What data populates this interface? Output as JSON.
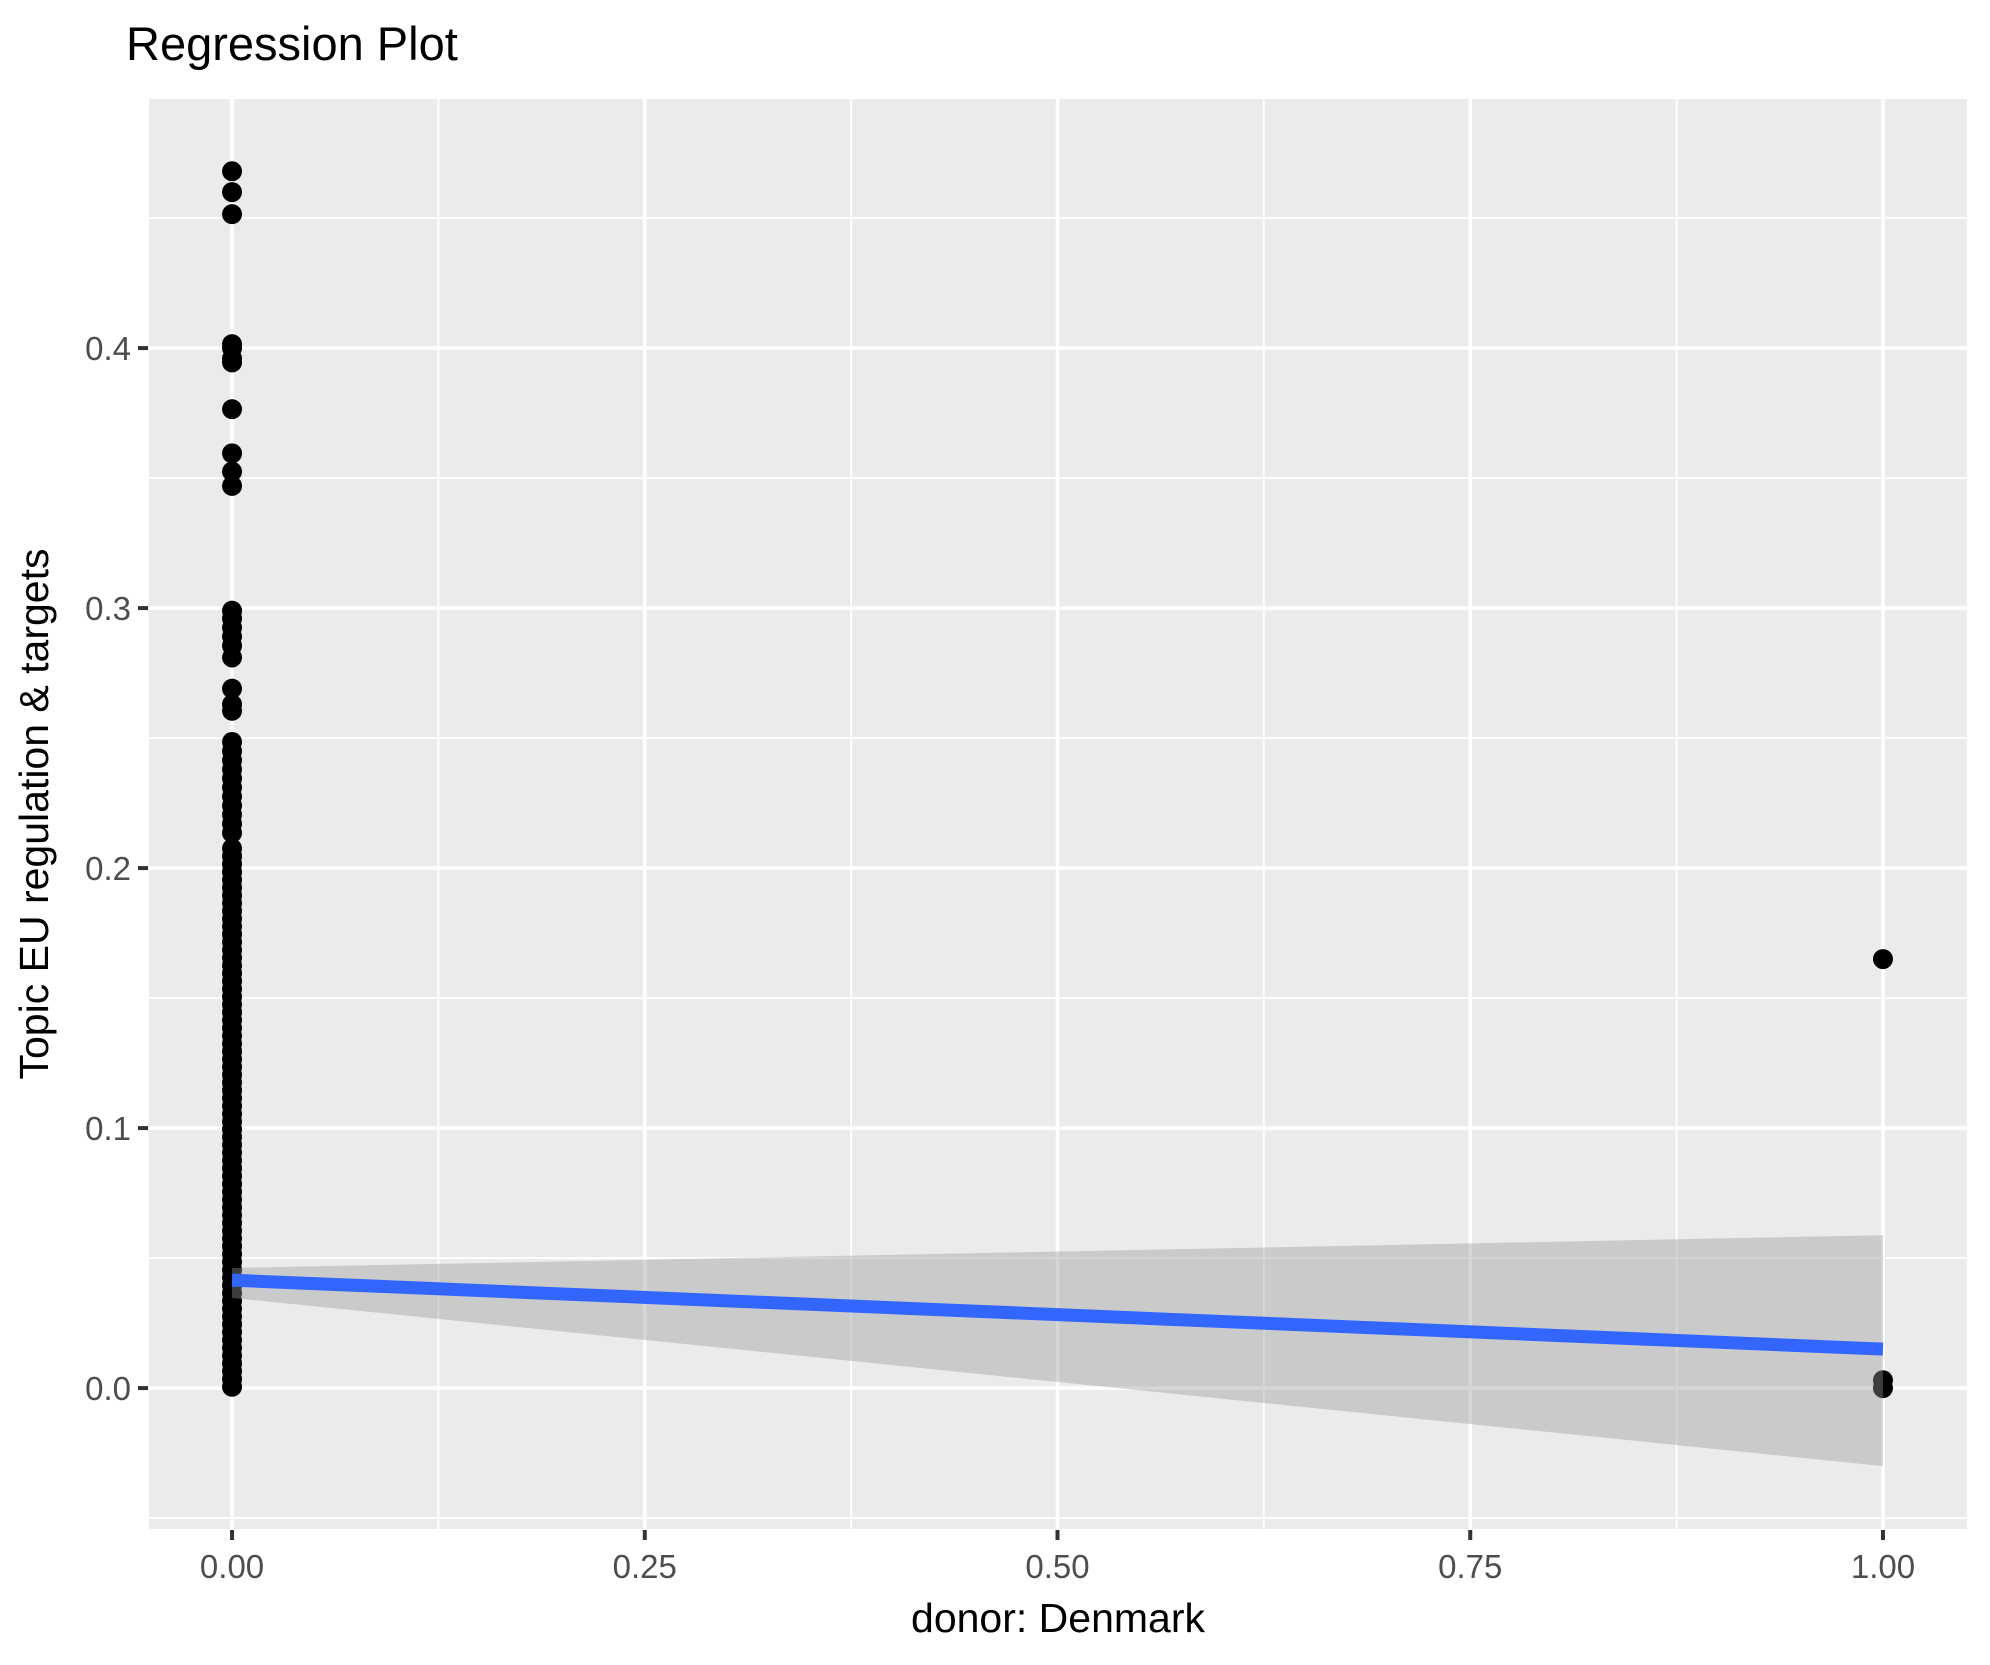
{
  "chart_data": {
    "type": "scatter",
    "title": "Regression Plot",
    "xlabel": "donor: Denmark",
    "ylabel": "Topic EU regulation & targets",
    "xlim": [
      -0.0503,
      1.0509
    ],
    "ylim": [
      -0.0542,
      0.4958
    ],
    "grid": "on",
    "x_ticks": {
      "major": [
        0.0,
        0.25,
        0.5,
        0.75,
        1.0
      ],
      "labels": [
        "0.00",
        "0.25",
        "0.50",
        "0.75",
        "1.00"
      ],
      "minor": [
        0.125,
        0.375,
        0.625,
        0.875
      ]
    },
    "y_ticks": {
      "major": [
        0.0,
        0.1,
        0.2,
        0.3,
        0.4
      ],
      "labels": [
        "0.0",
        "0.1",
        "0.2",
        "0.3",
        "0.4"
      ],
      "minor": [
        -0.05,
        0.05,
        0.15,
        0.25,
        0.35,
        0.45
      ]
    },
    "points": [
      {
        "x": 0,
        "y_values": [
          0.468,
          0.46,
          0.4515,
          0.4015,
          0.4,
          0.396,
          0.3945,
          0.3765,
          0.3595,
          0.3525,
          0.347,
          0.299,
          0.296,
          0.2925,
          0.289,
          0.2855,
          0.281,
          0.269,
          0.263,
          0.2605,
          0.2485,
          0.245,
          0.2415,
          0.238,
          0.2345,
          0.231,
          0.2275,
          0.224,
          0.2205,
          0.217,
          0.2135,
          0.2075,
          0.2045,
          0.2015,
          0.1985,
          0.1955,
          0.1925,
          0.1895,
          0.1865,
          0.1835,
          0.1805,
          0.1775,
          0.1745,
          0.1715,
          0.1685,
          0.1655,
          0.1625,
          0.1595,
          0.1565,
          0.1535,
          0.1505,
          0.1475,
          0.1445,
          0.1415,
          0.1385,
          0.1355,
          0.1325,
          0.1295,
          0.1265,
          0.1235,
          0.1205,
          0.1175,
          0.1145,
          0.1115,
          0.1085,
          0.1055,
          0.1025,
          0.0995,
          0.0965,
          0.0935,
          0.0905,
          0.0875,
          0.0845,
          0.0815,
          0.0785,
          0.0755,
          0.0725,
          0.0695,
          0.0665,
          0.0635,
          0.0605,
          0.0575,
          0.0545,
          0.0515,
          0.0485,
          0.0455,
          0.0425,
          0.0395,
          0.0365,
          0.0335,
          0.0305,
          0.0275,
          0.0245,
          0.0215,
          0.0185,
          0.0155,
          0.0125,
          0.0095,
          0.0065,
          0.0035,
          0.0005
        ]
      },
      {
        "x": 1,
        "y_values": [
          0.165,
          0.003,
          0.0
        ]
      }
    ],
    "regression_line": {
      "x": [
        0,
        1
      ],
      "y": [
        0.0415,
        0.015
      ]
    },
    "ci_band": {
      "x": [
        0,
        1
      ],
      "upper": [
        0.0462,
        0.0588
      ],
      "lower": [
        0.0347,
        -0.03
      ]
    },
    "colors": {
      "panel_background": "#EBEBEB",
      "gridline": "#FFFFFF",
      "point": "#000000",
      "regression_line": "#3366FF",
      "ci_band_fill": "rgba(153,153,153,0.4)",
      "tick_label": "#4D4D4D",
      "tick_mark": "#333333",
      "title_text": "#000000"
    }
  }
}
